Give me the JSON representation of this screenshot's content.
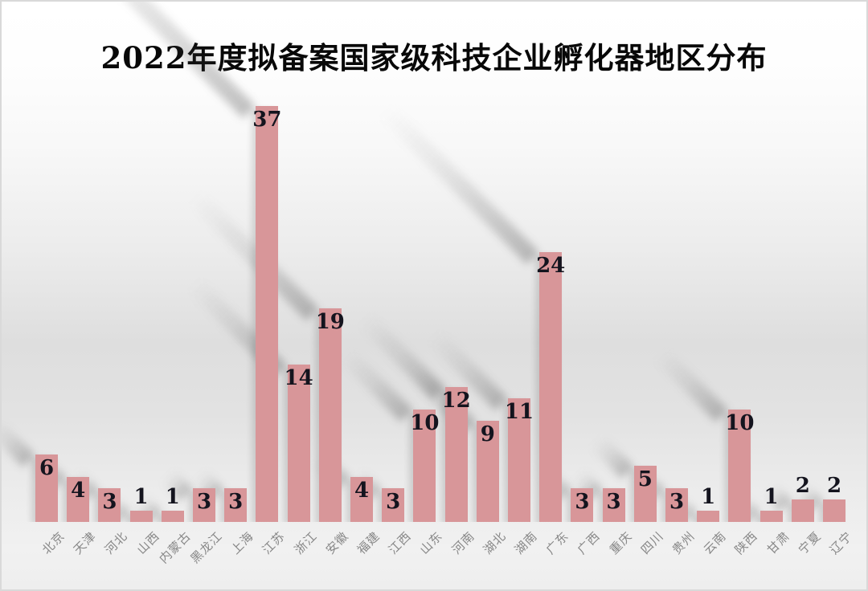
{
  "chart_data": {
    "type": "bar",
    "title": "2022年度拟备案国家级科技企业孵化器地区分布",
    "categories": [
      "北京",
      "天津",
      "河北",
      "山西",
      "内蒙古",
      "黑龙江",
      "上海",
      "江苏",
      "浙江",
      "安徽",
      "福建",
      "江西",
      "山东",
      "河南",
      "湖北",
      "湖南",
      "广东",
      "广西",
      "重庆",
      "四川",
      "贵州",
      "云南",
      "陕西",
      "甘肃",
      "宁夏",
      "辽宁"
    ],
    "values": [
      6,
      4,
      3,
      1,
      1,
      3,
      3,
      37,
      14,
      19,
      4,
      3,
      10,
      12,
      9,
      11,
      24,
      3,
      3,
      5,
      3,
      1,
      10,
      1,
      2,
      2
    ],
    "xlabel": "",
    "ylabel": "",
    "ylim": [
      0,
      40
    ],
    "grid": false,
    "legend": false,
    "data_label_position": "inside-end",
    "bar_color": "#d89699",
    "data_label_color": "#14141e",
    "axis_label_color": "#878787",
    "background_top": "#ffffff",
    "background_mid": "#dedede",
    "background_bottom": "#eeeeee"
  }
}
